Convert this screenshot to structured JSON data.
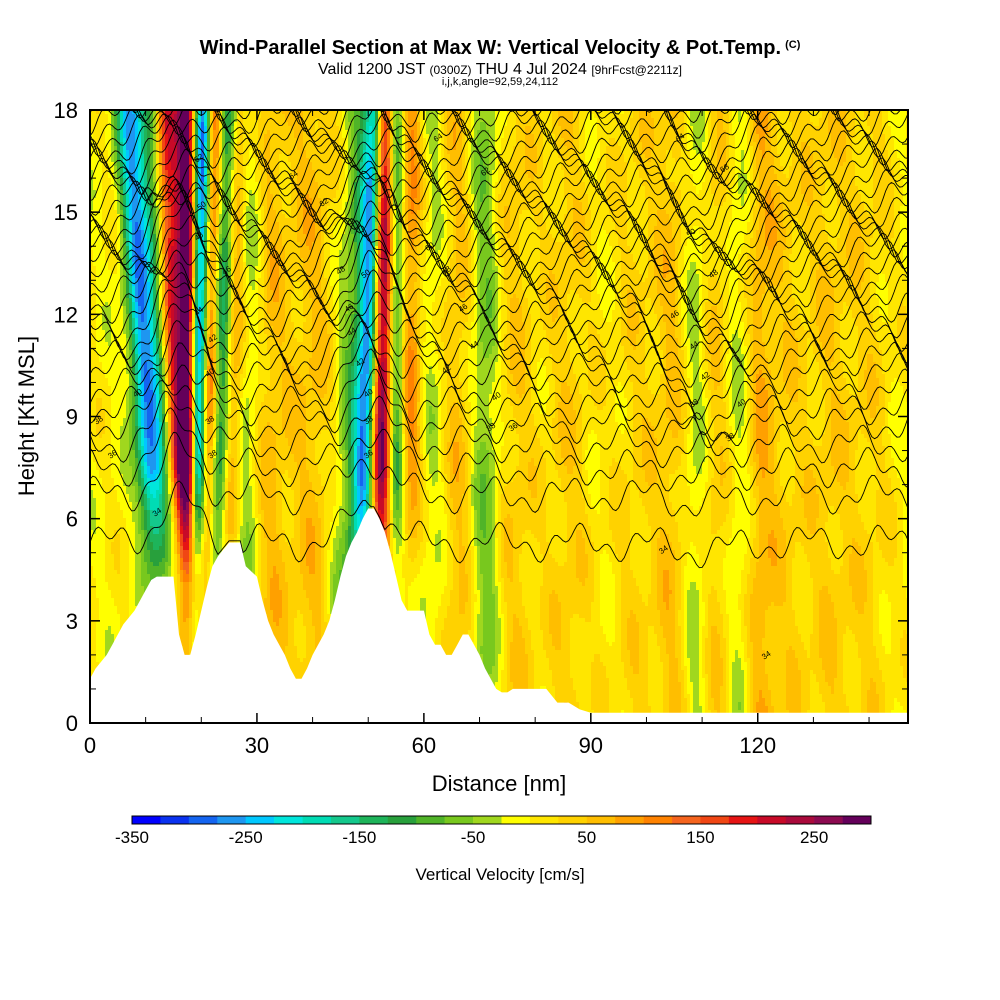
{
  "header": {
    "title": "Wind-Parallel Section at Max W: Vertical Velocity & Pot.Temp.",
    "copyright": "(C)",
    "valid_prefix": "Valid 1200 JST",
    "valid_utc": "(0300Z)",
    "valid_date": "THU 4 Jul 2024",
    "forecast": "[9hrFcst@2211z]",
    "params": "i,j,k,angle=92,59,24,112"
  },
  "chart_data": {
    "type": "heatmap",
    "xlabel": "Distance [nm]",
    "ylabel": "Height [Kft MSL]",
    "xlim": [
      0,
      147
    ],
    "ylim": [
      0,
      18
    ],
    "x_ticks": [
      0,
      30,
      60,
      90,
      120
    ],
    "x_tick_labels": [
      "0",
      "30",
      "60",
      "90",
      "120"
    ],
    "y_ticks": [
      0,
      3,
      6,
      9,
      12,
      15,
      18
    ],
    "y_tick_labels": [
      "0",
      "3",
      "6",
      "9",
      "12",
      "15",
      "18"
    ],
    "colorbar": {
      "title": "Vertical Velocity [cm/s]",
      "min": -350,
      "max": 300,
      "step": 25,
      "tick_values": [
        -350,
        -250,
        -150,
        -50,
        50,
        150,
        250
      ],
      "tick_labels": [
        "-350",
        "-250",
        "-150",
        "-50",
        "50",
        "150",
        "250"
      ],
      "colors": [
        "#0000ff",
        "#0a32f0",
        "#1464f0",
        "#1e96f0",
        "#00c8ff",
        "#00e6dc",
        "#00dcb4",
        "#14c88c",
        "#1eb45a",
        "#28a03c",
        "#50b428",
        "#78c81e",
        "#a0d71e",
        "#ffff00",
        "#ffe600",
        "#ffd200",
        "#ffbe00",
        "#ffa000",
        "#ff8200",
        "#f5641e",
        "#f04614",
        "#e61414",
        "#c80a28",
        "#aa0a3c",
        "#8c0a50",
        "#64005a"
      ]
    },
    "terrain_profile": {
      "x": [
        0,
        1,
        2,
        3,
        4,
        5,
        6,
        7,
        8,
        9,
        10,
        11,
        12,
        13,
        14,
        15,
        16,
        17,
        18,
        19,
        20,
        21,
        22,
        23,
        24,
        25,
        26,
        27,
        28,
        30,
        31,
        32,
        33,
        34,
        35,
        36,
        37,
        38,
        39,
        40,
        41,
        42,
        43,
        44,
        45,
        46,
        47,
        48,
        49,
        50,
        51,
        52,
        53,
        54,
        55,
        56,
        57,
        58,
        59,
        60,
        61,
        62,
        63,
        64,
        65,
        66,
        67,
        68,
        69,
        70,
        71,
        72,
        73,
        74,
        75,
        76,
        77,
        78,
        79,
        80,
        81,
        82,
        84,
        86,
        88,
        90,
        91,
        92,
        93,
        94,
        96,
        100,
        120,
        147
      ],
      "y": [
        1.3,
        1.6,
        1.8,
        2.0,
        2.3,
        2.6,
        2.9,
        3.1,
        3.3,
        3.6,
        3.9,
        4.2,
        4.3,
        4.3,
        4.3,
        4.3,
        2.6,
        2.0,
        2.0,
        2.6,
        3.3,
        4.0,
        4.6,
        4.9,
        5.1,
        5.3,
        5.3,
        5.3,
        4.6,
        4.3,
        3.6,
        3.0,
        2.6,
        2.3,
        2.0,
        1.6,
        1.3,
        1.3,
        1.6,
        2.0,
        2.3,
        2.6,
        3.0,
        3.6,
        4.3,
        4.9,
        5.3,
        5.6,
        6.0,
        6.3,
        6.3,
        6.0,
        5.6,
        5.0,
        4.3,
        3.6,
        3.3,
        3.3,
        3.3,
        3.3,
        2.6,
        2.3,
        2.3,
        2.0,
        2.0,
        2.3,
        2.6,
        2.6,
        2.3,
        2.0,
        1.6,
        1.3,
        1.0,
        0.9,
        0.9,
        1.0,
        1.0,
        1.0,
        1.0,
        1.0,
        1.0,
        1.0,
        0.6,
        0.6,
        0.4,
        0.3,
        0.3,
        0.3,
        0.3,
        0.3,
        0.3,
        0.3,
        0.3,
        0.3
      ]
    },
    "features": [
      {
        "x": 10,
        "w": -220,
        "sigma": 1.6,
        "slope": -0.35
      },
      {
        "x": 12.5,
        "w": -120,
        "sigma": 1.8,
        "slope": -0.3
      },
      {
        "x": 15.5,
        "w": 210,
        "sigma": 1.4,
        "slope": -0.2
      },
      {
        "x": 17.5,
        "w": 300,
        "sigma": 1.1,
        "slope": -0.05
      },
      {
        "x": 19.5,
        "w": -300,
        "sigma": 1.0,
        "slope": 0.1
      },
      {
        "x": 21.5,
        "w": 160,
        "sigma": 1.2,
        "slope": 0.1
      },
      {
        "x": 23.5,
        "w": -200,
        "sigma": 1.2,
        "slope": 0.15
      },
      {
        "x": 25.5,
        "w": 130,
        "sigma": 1.5,
        "slope": 0.1
      },
      {
        "x": 28,
        "w": -70,
        "sigma": 2.0,
        "slope": 0.1
      },
      {
        "x": 32,
        "w": 60,
        "sigma": 2.5,
        "slope": 0.0
      },
      {
        "x": 40,
        "w": 55,
        "sigma": 3.0,
        "slope": 0.0
      },
      {
        "x": 47,
        "w": -80,
        "sigma": 2.0,
        "slope": 0.2
      },
      {
        "x": 49.5,
        "w": -260,
        "sigma": 1.3,
        "slope": 0.2
      },
      {
        "x": 52.5,
        "w": 300,
        "sigma": 1.3,
        "slope": 0.05
      },
      {
        "x": 55,
        "w": -150,
        "sigma": 1.2,
        "slope": 0.0
      },
      {
        "x": 57.5,
        "w": 110,
        "sigma": 1.5,
        "slope": 0.0
      },
      {
        "x": 62,
        "w": -40,
        "sigma": 2.0,
        "slope": 0.0
      },
      {
        "x": 66,
        "w": 60,
        "sigma": 2.5,
        "slope": 0.0
      },
      {
        "x": 71,
        "w": -80,
        "sigma": 2.0,
        "slope": 0.0
      },
      {
        "x": 76,
        "w": 45,
        "sigma": 3.0,
        "slope": 0.0
      },
      {
        "x": 86,
        "w": 40,
        "sigma": 3.0,
        "slope": 0.0
      },
      {
        "x": 98,
        "w": 30,
        "sigma": 3.0,
        "slope": 0.0
      },
      {
        "x": 105,
        "w": 55,
        "sigma": 2.5,
        "slope": 0.0
      },
      {
        "x": 109,
        "w": -70,
        "sigma": 2.0,
        "slope": 0.0
      },
      {
        "x": 112,
        "w": 60,
        "sigma": 2.5,
        "slope": 0.0
      },
      {
        "x": 117,
        "w": -50,
        "sigma": 2.0,
        "slope": 0.0
      },
      {
        "x": 120,
        "w": 70,
        "sigma": 2.0,
        "slope": 0.0
      },
      {
        "x": 125,
        "w": 35,
        "sigma": 3.0,
        "slope": 0.0
      },
      {
        "x": 133,
        "w": 40,
        "sigma": 3.0,
        "slope": 0.0
      },
      {
        "x": 140,
        "w": 30,
        "sigma": 3.0,
        "slope": 0.0
      }
    ],
    "theta_contours": {
      "levels": [
        34,
        35,
        36,
        37,
        38,
        39,
        40,
        41,
        42,
        43,
        44,
        45,
        46,
        47,
        48,
        49,
        50,
        51,
        52,
        53,
        54,
        55,
        56,
        57,
        58,
        59,
        60,
        61,
        62,
        63,
        64,
        65,
        66,
        67,
        68,
        69,
        70
      ],
      "base_heights_kft": [
        5.3,
        6.7,
        7.5,
        8.2,
        8.8,
        9.3,
        9.8,
        10.3,
        10.7,
        11.1,
        11.5,
        11.9,
        12.3,
        12.7,
        13.0,
        13.3,
        13.6,
        13.9,
        14.2,
        14.5,
        14.8,
        15.1,
        15.4,
        15.7,
        16.0,
        16.3,
        16.6,
        16.9,
        17.2,
        17.5,
        17.8,
        18.1,
        18.4,
        18.7,
        19.0,
        19.3,
        19.6
      ]
    },
    "contour_labels": [
      {
        "x": 4,
        "y": 7.9,
        "text": "36"
      },
      {
        "x": 1.5,
        "y": 8.9,
        "text": "38"
      },
      {
        "x": 8.5,
        "y": 9.7,
        "text": "40"
      },
      {
        "x": 12,
        "y": 6.2,
        "text": "34"
      },
      {
        "x": 19.5,
        "y": 16.6,
        "text": "52"
      },
      {
        "x": 20,
        "y": 15.2,
        "text": "50"
      },
      {
        "x": 19.5,
        "y": 14.3,
        "text": "48"
      },
      {
        "x": 19.5,
        "y": 12.1,
        "text": "44"
      },
      {
        "x": 22,
        "y": 11.3,
        "text": "42"
      },
      {
        "x": 21.5,
        "y": 10.3,
        "text": "40"
      },
      {
        "x": 21.5,
        "y": 8.9,
        "text": "38"
      },
      {
        "x": 22,
        "y": 7.9,
        "text": "38"
      },
      {
        "x": 24.5,
        "y": 13.3,
        "text": "46"
      },
      {
        "x": 36.5,
        "y": 16.1,
        "text": "64"
      },
      {
        "x": 42,
        "y": 15.3,
        "text": "62"
      },
      {
        "x": 45,
        "y": 13.3,
        "text": "48"
      },
      {
        "x": 49.5,
        "y": 13.2,
        "text": "50"
      },
      {
        "x": 46.5,
        "y": 12.2,
        "text": "46"
      },
      {
        "x": 47,
        "y": 11.5,
        "text": "44"
      },
      {
        "x": 48.5,
        "y": 10.6,
        "text": "42"
      },
      {
        "x": 50,
        "y": 9.7,
        "text": "40"
      },
      {
        "x": 50,
        "y": 8.9,
        "text": "38"
      },
      {
        "x": 50,
        "y": 7.9,
        "text": "36"
      },
      {
        "x": 62.5,
        "y": 17.2,
        "text": "64"
      },
      {
        "x": 71,
        "y": 16.2,
        "text": "62"
      },
      {
        "x": 61,
        "y": 14.0,
        "text": "60"
      },
      {
        "x": 64,
        "y": 13.3,
        "text": "48"
      },
      {
        "x": 67,
        "y": 12.2,
        "text": "46"
      },
      {
        "x": 69,
        "y": 11.1,
        "text": "44"
      },
      {
        "x": 64,
        "y": 10.4,
        "text": "42"
      },
      {
        "x": 73,
        "y": 9.6,
        "text": "40"
      },
      {
        "x": 72,
        "y": 8.7,
        "text": "38"
      },
      {
        "x": 76,
        "y": 8.7,
        "text": "36"
      },
      {
        "x": 106,
        "y": 17.2,
        "text": "64"
      },
      {
        "x": 114,
        "y": 16.3,
        "text": "68"
      },
      {
        "x": 108,
        "y": 14.4,
        "text": "50"
      },
      {
        "x": 112,
        "y": 13.2,
        "text": "48"
      },
      {
        "x": 105,
        "y": 12.0,
        "text": "46"
      },
      {
        "x": 108.5,
        "y": 11.1,
        "text": "44"
      },
      {
        "x": 110.5,
        "y": 10.2,
        "text": "42"
      },
      {
        "x": 108.5,
        "y": 9.4,
        "text": "38"
      },
      {
        "x": 117,
        "y": 9.4,
        "text": "40"
      },
      {
        "x": 115,
        "y": 8.4,
        "text": "38"
      },
      {
        "x": 103,
        "y": 5.1,
        "text": "34"
      },
      {
        "x": 121.5,
        "y": 2.0,
        "text": "34"
      }
    ]
  }
}
